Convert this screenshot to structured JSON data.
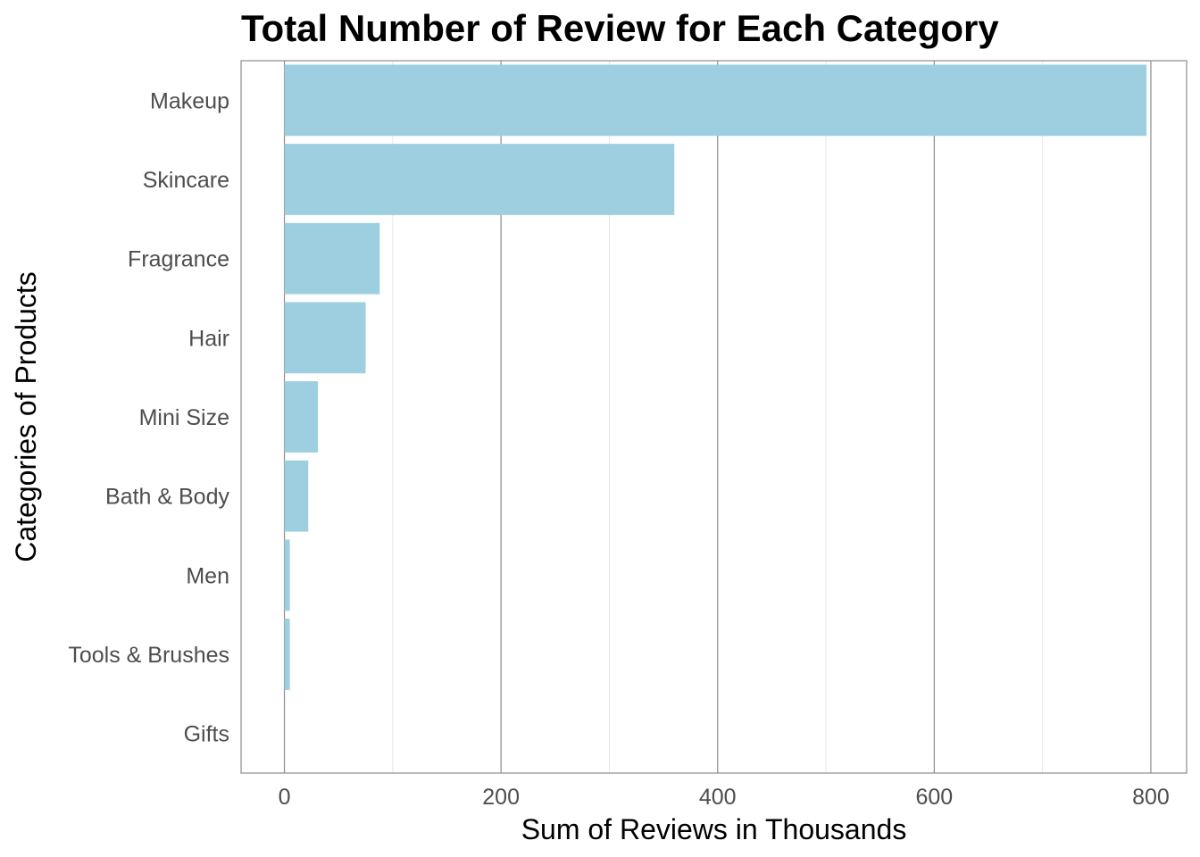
{
  "chart_data": {
    "type": "bar",
    "orientation": "horizontal",
    "title": "Total Number of Review for Each Category",
    "xlabel": "Sum of Reviews in Thousands",
    "ylabel": "Categories of Products",
    "categories": [
      "Makeup",
      "Skincare",
      "Fragrance",
      "Hair",
      "Mini Size",
      "Bath & Body",
      "Men",
      "Tools & Brushes",
      "Gifts"
    ],
    "values": [
      796,
      360,
      88,
      75,
      31,
      22,
      5,
      5,
      0
    ],
    "xlim": [
      -40,
      833
    ],
    "xticks": [
      "0",
      "200",
      "400",
      "600",
      "800"
    ],
    "grid": true,
    "bar_color": "#9ecfe0",
    "grid_color": "#8c8c8c",
    "frame_color": "#8c8c8c"
  }
}
